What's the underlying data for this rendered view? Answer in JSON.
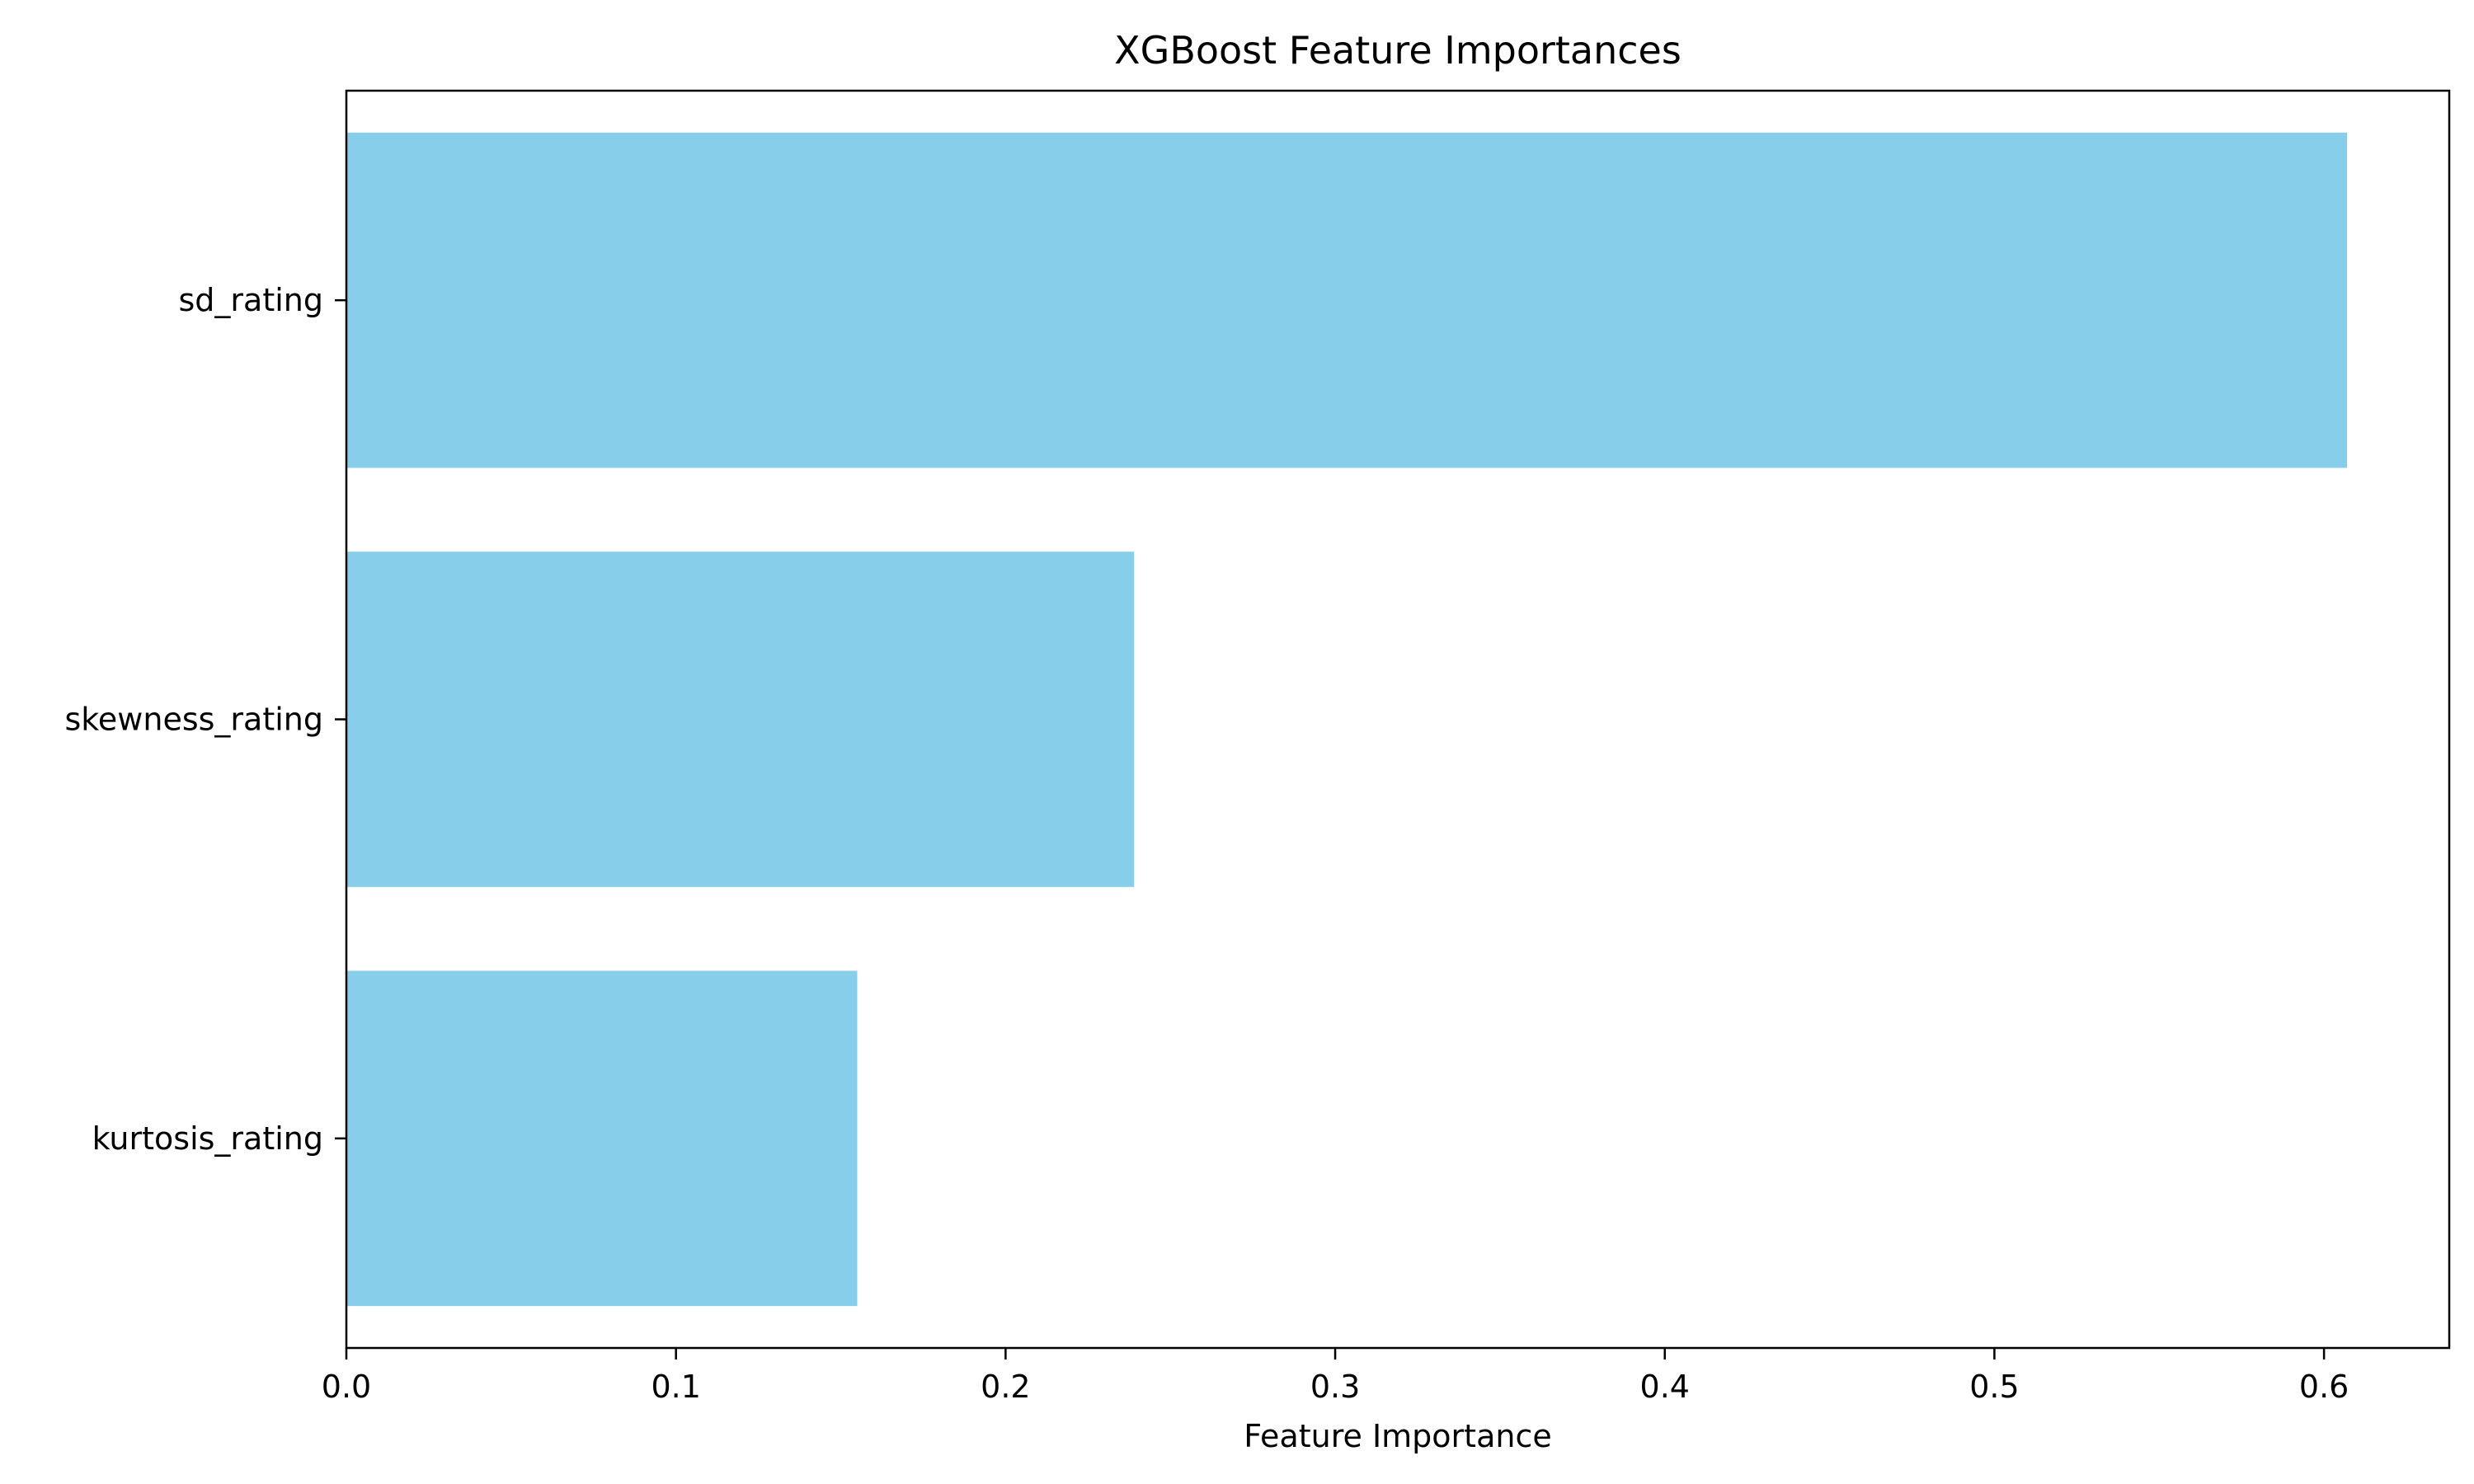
{
  "chart_data": {
    "type": "bar",
    "orientation": "horizontal",
    "title": "XGBoost Feature Importances",
    "xlabel": "Feature Importance",
    "ylabel": "",
    "categories": [
      "sd_rating",
      "skewness_rating",
      "kurtosis_rating"
    ],
    "values": [
      0.607,
      0.239,
      0.155
    ],
    "xlim": [
      0,
      0.638
    ],
    "xticks": [
      0.0,
      0.1,
      0.2,
      0.3,
      0.4,
      0.5,
      0.6
    ],
    "xtick_labels": [
      "0.0",
      "0.1",
      "0.2",
      "0.3",
      "0.4",
      "0.5",
      "0.6"
    ],
    "bar_color": "#87ceeb",
    "grid": false,
    "legend": "none"
  }
}
